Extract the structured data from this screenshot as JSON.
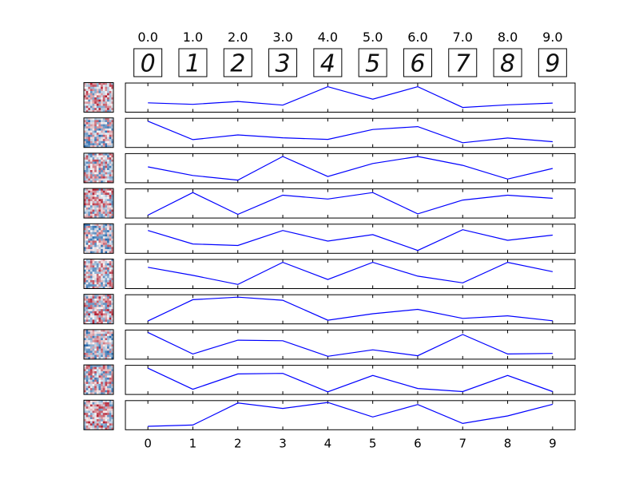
{
  "chart_data": {
    "type": "line",
    "title": "",
    "xlabel": "",
    "ylabel": "",
    "digit_labels": [
      "0.0",
      "1.0",
      "2.0",
      "3.0",
      "4.0",
      "5.0",
      "6.0",
      "7.0",
      "8.0",
      "9.0"
    ],
    "digit_glyphs": [
      "0",
      "1",
      "2",
      "3",
      "4",
      "5",
      "6",
      "7",
      "8",
      "9"
    ],
    "x": [
      0,
      1,
      2,
      3,
      4,
      5,
      6,
      7,
      8,
      9
    ],
    "x_tick_labels": [
      "0",
      "1",
      "2",
      "3",
      "4",
      "5",
      "6",
      "7",
      "8",
      "9"
    ],
    "xlim": [
      -0.5,
      9.5
    ],
    "ylim": [
      0,
      1
    ],
    "line_color": "#0000ff",
    "filter_colormap": [
      "#2166ac",
      "#f7f7f7",
      "#b2182b"
    ],
    "series": [
      {
        "values": [
          0.3,
          0.24,
          0.35,
          0.21,
          0.92,
          0.44,
          0.92,
          0.12,
          0.22,
          0.29
        ]
      },
      {
        "values": [
          0.95,
          0.24,
          0.42,
          0.31,
          0.25,
          0.63,
          0.74,
          0.12,
          0.3,
          0.16
        ]
      },
      {
        "values": [
          0.55,
          0.22,
          0.04,
          0.95,
          0.18,
          0.68,
          0.95,
          0.61,
          0.08,
          0.49
        ]
      },
      {
        "values": [
          0.05,
          0.92,
          0.08,
          0.82,
          0.67,
          0.92,
          0.1,
          0.63,
          0.82,
          0.7
        ]
      },
      {
        "values": [
          0.82,
          0.3,
          0.24,
          0.82,
          0.41,
          0.66,
          0.05,
          0.85,
          0.44,
          0.64
        ]
      },
      {
        "values": [
          0.76,
          0.45,
          0.1,
          0.95,
          0.29,
          0.95,
          0.42,
          0.16,
          0.95,
          0.59
        ]
      },
      {
        "values": [
          0.05,
          0.87,
          0.97,
          0.85,
          0.08,
          0.33,
          0.5,
          0.15,
          0.25,
          0.06
        ]
      },
      {
        "values": [
          0.97,
          0.14,
          0.67,
          0.65,
          0.05,
          0.3,
          0.07,
          0.89,
          0.14,
          0.16
        ]
      },
      {
        "values": [
          0.95,
          0.14,
          0.73,
          0.75,
          0.04,
          0.67,
          0.17,
          0.05,
          0.67,
          0.05
        ]
      },
      {
        "values": [
          0.07,
          0.12,
          0.97,
          0.76,
          0.99,
          0.43,
          0.91,
          0.18,
          0.47,
          0.92
        ]
      }
    ]
  }
}
